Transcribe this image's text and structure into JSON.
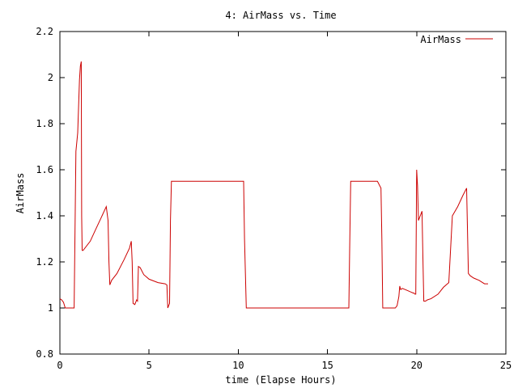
{
  "chart_data": {
    "type": "line",
    "title": "4: AirMass vs. Time",
    "xlabel": "time (Elapse Hours)",
    "ylabel": "AirMass",
    "xlim": [
      0,
      25
    ],
    "ylim": [
      0.8,
      2.2
    ],
    "xticks": [
      0,
      5,
      10,
      15,
      20,
      25
    ],
    "xtick_labels": [
      "0",
      "5",
      "10",
      "15",
      "20",
      "25"
    ],
    "yticks": [
      0.8,
      1.0,
      1.2,
      1.4,
      1.6,
      1.8,
      2.0,
      2.2
    ],
    "ytick_labels": [
      "0.8",
      "1",
      "1.2",
      "1.4",
      "1.6",
      "1.8",
      "2",
      "2.2"
    ],
    "grid": false,
    "legend_position": "top-right",
    "series": [
      {
        "name": "AirMass",
        "color": "#cc0000",
        "x": [
          0.0,
          0.1,
          0.2,
          0.3,
          0.5,
          0.8,
          0.9,
          1.0,
          1.1,
          1.15,
          1.2,
          1.22,
          1.25,
          1.3,
          1.7,
          2.0,
          2.3,
          2.6,
          2.7,
          2.75,
          2.8,
          2.9,
          3.2,
          3.6,
          3.9,
          4.0,
          4.05,
          4.1,
          4.2,
          4.3,
          4.35,
          4.4,
          4.5,
          4.7,
          5.0,
          5.5,
          5.9,
          6.0,
          6.05,
          6.15,
          6.2,
          6.25,
          6.35,
          8.0,
          10.0,
          10.3,
          10.35,
          10.45,
          10.5,
          12.0,
          14.0,
          16.0,
          16.2,
          16.25,
          16.3,
          16.4,
          16.5,
          17.0,
          17.8,
          17.9,
          18.0,
          18.05,
          18.1,
          18.2,
          18.5,
          18.8,
          18.9,
          19.0,
          19.05,
          19.1,
          19.2,
          19.5,
          19.8,
          19.85,
          19.9,
          19.95,
          20.0,
          20.05,
          20.1,
          20.15,
          20.2,
          20.25,
          20.3,
          20.35,
          20.4,
          20.45,
          20.5,
          20.6,
          20.8,
          21.2,
          21.5,
          21.8,
          22.0,
          22.3,
          22.6,
          22.8,
          22.9,
          23.0,
          23.2,
          23.5,
          23.8,
          24.0
        ],
        "y": [
          1.04,
          1.035,
          1.025,
          1.0,
          1.0,
          1.0,
          1.68,
          1.76,
          1.99,
          2.05,
          2.07,
          1.4,
          1.25,
          1.25,
          1.29,
          1.34,
          1.39,
          1.44,
          1.38,
          1.2,
          1.1,
          1.12,
          1.15,
          1.21,
          1.26,
          1.29,
          1.2,
          1.02,
          1.015,
          1.035,
          1.03,
          1.18,
          1.175,
          1.145,
          1.125,
          1.11,
          1.105,
          1.1,
          1.0,
          1.02,
          1.38,
          1.55,
          1.55,
          1.55,
          1.55,
          1.55,
          1.3,
          1.0,
          1.0,
          1.0,
          1.0,
          1.0,
          1.0,
          1.3,
          1.55,
          1.55,
          1.55,
          1.55,
          1.55,
          1.535,
          1.52,
          1.3,
          1.0,
          1.0,
          1.0,
          1.0,
          1.01,
          1.05,
          1.095,
          1.08,
          1.085,
          1.075,
          1.065,
          1.065,
          1.06,
          1.06,
          1.6,
          1.53,
          1.38,
          1.39,
          1.4,
          1.41,
          1.42,
          1.22,
          1.03,
          1.03,
          1.03,
          1.035,
          1.04,
          1.06,
          1.09,
          1.11,
          1.4,
          1.44,
          1.49,
          1.52,
          1.15,
          1.14,
          1.13,
          1.12,
          1.105,
          1.105
        ]
      }
    ]
  }
}
